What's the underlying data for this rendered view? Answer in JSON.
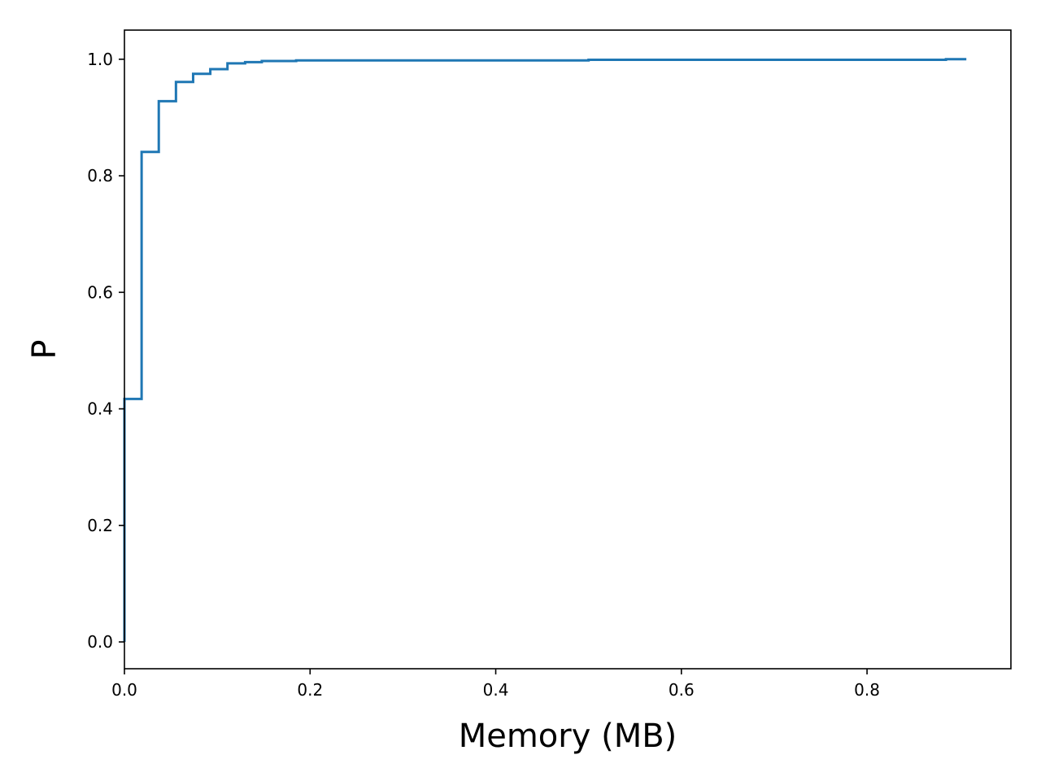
{
  "chart_data": {
    "type": "line",
    "style": "step-ecdf",
    "xlabel": "Memory (MB)",
    "ylabel": "P",
    "xlim": [
      0.0,
      0.955
    ],
    "ylim": [
      -0.046,
      1.05
    ],
    "xticks": [
      0.0,
      0.2,
      0.4,
      0.6,
      0.8
    ],
    "xtick_labels": [
      "0.0",
      "0.2",
      "0.4",
      "0.6",
      "0.8"
    ],
    "yticks": [
      0.0,
      0.2,
      0.4,
      0.6,
      0.8,
      1.0
    ],
    "ytick_labels": [
      "0.0",
      "0.2",
      "0.4",
      "0.6",
      "0.8",
      "1.0"
    ],
    "grid": false,
    "legend": "none",
    "line_color": "#1f77b4",
    "series": [
      {
        "x": [
          0.0,
          0.0,
          0.0185,
          0.037,
          0.0555,
          0.074,
          0.0925,
          0.111,
          0.13,
          0.148,
          0.185,
          0.5,
          0.885,
          0.907
        ],
        "y": [
          0.0,
          0.417,
          0.841,
          0.928,
          0.961,
          0.975,
          0.983,
          0.993,
          0.995,
          0.997,
          0.998,
          0.999,
          1.0,
          1.0
        ]
      }
    ]
  }
}
